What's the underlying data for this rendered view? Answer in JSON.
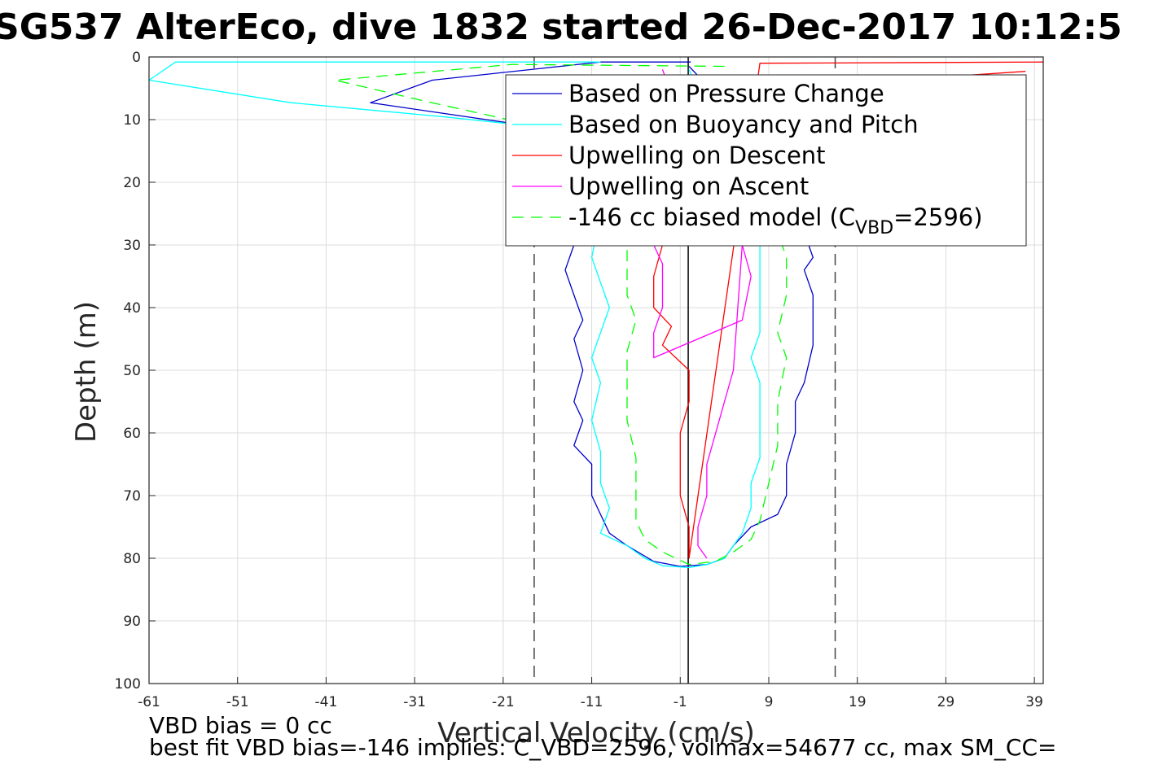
{
  "chart_data": {
    "type": "line",
    "title": "SG537 AlterEco, dive 1832 started 26-Dec-2017 10:12:5",
    "xlabel": "Vertical Velocity (cm/s)",
    "ylabel": "Depth (m)",
    "xlim": [
      -61,
      40
    ],
    "ylim": [
      0,
      100
    ],
    "y_reversed": true,
    "xticks": [
      -61,
      -51,
      -41,
      -31,
      -21,
      -11,
      -1,
      9,
      19,
      29,
      39
    ],
    "yticks": [
      0,
      10,
      20,
      30,
      40,
      50,
      60,
      70,
      80,
      90,
      100
    ],
    "grid": true,
    "legend_location": "top-right",
    "reference_lines": [
      {
        "x": -17.5,
        "style": "dashed",
        "color": "#444444"
      },
      {
        "x": 16.5,
        "style": "dashed",
        "color": "#444444"
      },
      {
        "x": -0.1,
        "style": "solid",
        "color": "#000000"
      }
    ],
    "series": [
      {
        "name": "Based on Pressure Change",
        "color": "#0000cc",
        "dash": "solid",
        "points": [
          [
            0.2,
            0.8
          ],
          [
            -10,
            0.8
          ],
          [
            -29,
            3.7
          ],
          [
            -36,
            7.3
          ],
          [
            -19,
            10.8
          ],
          [
            -15,
            13
          ],
          [
            -12,
            20
          ],
          [
            -13,
            30
          ],
          [
            -14,
            34
          ],
          [
            -13,
            38
          ],
          [
            -12,
            42
          ],
          [
            -13,
            45
          ],
          [
            -12,
            50
          ],
          [
            -13,
            55
          ],
          [
            -12,
            58
          ],
          [
            -13,
            62
          ],
          [
            -11,
            65
          ],
          [
            -11,
            70
          ],
          [
            -10,
            73
          ],
          [
            -9,
            76
          ],
          [
            -7,
            78
          ],
          [
            -4,
            80.5
          ],
          [
            -1,
            81.3
          ],
          [
            2,
            81
          ],
          [
            4,
            80
          ],
          [
            5,
            78
          ],
          [
            7,
            75
          ],
          [
            10,
            73
          ],
          [
            11,
            70
          ],
          [
            11,
            65
          ],
          [
            12,
            60
          ],
          [
            12,
            55
          ],
          [
            13,
            52
          ],
          [
            14,
            46
          ],
          [
            14,
            42
          ],
          [
            14,
            38
          ],
          [
            13,
            34
          ],
          [
            14,
            32
          ],
          [
            13,
            28
          ],
          [
            6,
            15
          ],
          [
            1,
            3
          ],
          [
            0,
            1.5
          ]
        ]
      },
      {
        "name": "Based on Buoyancy and Pitch",
        "color": "#00ffff",
        "dash": "solid",
        "points": [
          [
            -10,
            0.8
          ],
          [
            -58,
            0.8
          ],
          [
            -61,
            3.7
          ],
          [
            -45,
            7.3
          ],
          [
            -28,
            9.5
          ],
          [
            -18,
            11
          ],
          [
            -12,
            15
          ],
          [
            -10,
            25
          ],
          [
            -11,
            32
          ],
          [
            -10,
            36
          ],
          [
            -9,
            40
          ],
          [
            -10,
            44
          ],
          [
            -11,
            48
          ],
          [
            -10,
            52
          ],
          [
            -11,
            58
          ],
          [
            -10,
            63
          ],
          [
            -10,
            68
          ],
          [
            -9,
            72
          ],
          [
            -10,
            76
          ],
          [
            -7,
            78
          ],
          [
            -5,
            80
          ],
          [
            -3,
            81.2
          ],
          [
            0,
            81.5
          ],
          [
            2,
            81
          ],
          [
            4,
            80
          ],
          [
            5,
            78
          ],
          [
            6,
            76
          ],
          [
            7,
            72
          ],
          [
            7,
            68
          ],
          [
            8,
            64
          ],
          [
            8,
            58
          ],
          [
            8,
            52
          ],
          [
            7,
            48
          ],
          [
            8,
            44
          ],
          [
            8,
            38
          ],
          [
            8,
            34
          ],
          [
            8,
            30
          ],
          [
            3,
            12
          ],
          [
            0,
            2
          ]
        ]
      },
      {
        "name": "Upwelling on Descent",
        "color": "#ff0000",
        "dash": "solid",
        "points": [
          [
            38,
            2.3
          ],
          [
            20,
            4
          ],
          [
            8,
            6
          ],
          [
            2,
            10
          ],
          [
            -2,
            18
          ],
          [
            -3,
            25
          ],
          [
            -3,
            30
          ],
          [
            -4,
            35
          ],
          [
            -4,
            40
          ],
          [
            -2,
            43
          ],
          [
            -3,
            46
          ],
          [
            0,
            50
          ],
          [
            0,
            55
          ],
          [
            -1,
            60
          ],
          [
            -1,
            65
          ],
          [
            -1,
            70
          ],
          [
            0,
            75
          ],
          [
            0,
            80
          ],
          [
            8,
            1
          ],
          [
            40,
            0.8
          ]
        ]
      },
      {
        "name": "Upwelling on Ascent",
        "color": "#ff00ff",
        "dash": "solid",
        "points": [
          [
            -3,
            2
          ],
          [
            -1,
            10
          ],
          [
            -2,
            20
          ],
          [
            -4,
            30
          ],
          [
            -3,
            33
          ],
          [
            -3,
            40
          ],
          [
            -4,
            44
          ],
          [
            -4,
            48
          ],
          [
            6,
            42
          ],
          [
            7,
            35
          ],
          [
            6,
            30
          ],
          [
            5,
            50
          ],
          [
            4,
            55
          ],
          [
            3,
            60
          ],
          [
            2,
            65
          ],
          [
            2,
            70
          ],
          [
            1,
            75
          ],
          [
            1,
            78
          ],
          [
            2,
            80
          ]
        ]
      },
      {
        "name": "-146 cc biased model (C",
        "name_sub": "VBD",
        "name_end": "=2596)",
        "color": "#00ff00",
        "dash": "dashed",
        "points": [
          [
            4,
            1.5
          ],
          [
            -20,
            1.2
          ],
          [
            -40,
            3.7
          ],
          [
            -30,
            7
          ],
          [
            -22,
            9.5
          ],
          [
            -14,
            12
          ],
          [
            -9,
            18
          ],
          [
            -7,
            25
          ],
          [
            -7,
            32
          ],
          [
            -7,
            38
          ],
          [
            -6,
            42
          ],
          [
            -7,
            47
          ],
          [
            -7,
            52
          ],
          [
            -7,
            58
          ],
          [
            -6,
            64
          ],
          [
            -6,
            70
          ],
          [
            -6,
            74
          ],
          [
            -5,
            77
          ],
          [
            -3,
            79
          ],
          [
            0,
            81
          ],
          [
            3,
            80.5
          ],
          [
            5,
            79
          ],
          [
            7,
            77
          ],
          [
            8,
            74
          ],
          [
            9,
            68
          ],
          [
            10,
            62
          ],
          [
            10,
            55
          ],
          [
            11,
            48
          ],
          [
            10,
            44
          ],
          [
            11,
            38
          ],
          [
            11,
            32
          ],
          [
            10,
            28
          ],
          [
            6,
            15
          ],
          [
            2,
            5
          ]
        ]
      }
    ]
  },
  "footer": {
    "line1": "VBD bias = 0 cc",
    "line2": "best fit VBD bias=-146 implies: C_VBD=2596, volmax=54677 cc, max SM_CC="
  }
}
